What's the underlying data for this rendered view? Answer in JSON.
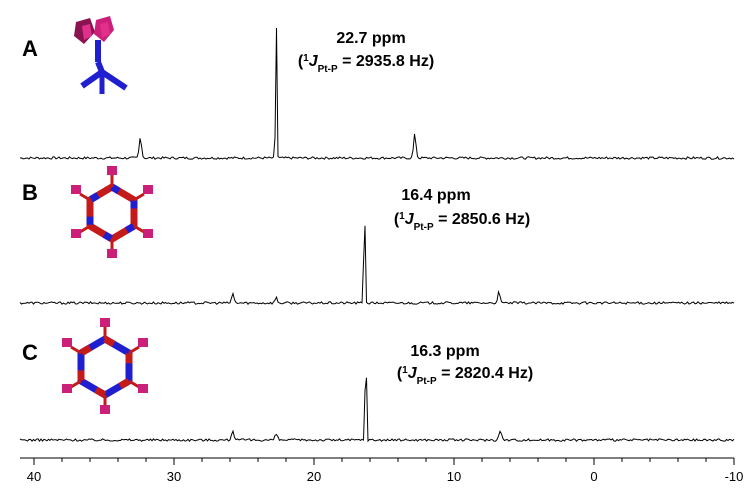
{
  "chart_data": {
    "type": "line",
    "title": "",
    "xlabel": "",
    "ylabel": "",
    "x_unit": "ppm",
    "xlim": [
      41,
      -10
    ],
    "x_ticks": [
      "40",
      "30",
      "20",
      "10",
      "0",
      "-10"
    ],
    "x_tick_values": [
      40,
      30,
      20,
      10,
      0,
      -10
    ],
    "reversed_x_axis": true,
    "grid": false,
    "panels": [
      {
        "label": "A",
        "structure_icon": "dimer-clip-icon",
        "shift_text": "22.7 ppm",
        "coupling_prefix": "(",
        "coupling_sup": "1",
        "coupling_j": "J",
        "coupling_sub": "Pt-P",
        "coupling_value": " = 2935.8 Hz)",
        "peaks": [
          {
            "ppm": 32.4,
            "relative_height": 0.14
          },
          {
            "ppm": 22.7,
            "relative_height": 1.0
          },
          {
            "ppm": 12.8,
            "relative_height": 0.16
          }
        ]
      },
      {
        "label": "B",
        "structure_icon": "hexagonal-macrocycle-icon",
        "shift_text": "16.4 ppm",
        "coupling_prefix": "(",
        "coupling_sup": "1",
        "coupling_j": "J",
        "coupling_sub": "Pt-P",
        "coupling_value": " = 2850.6 Hz)",
        "peaks": [
          {
            "ppm": 25.8,
            "relative_height": 0.07
          },
          {
            "ppm": 22.7,
            "relative_height": 0.04
          },
          {
            "ppm": 16.4,
            "relative_height": 1.0
          },
          {
            "ppm": 6.8,
            "relative_height": 0.08
          }
        ]
      },
      {
        "label": "C",
        "structure_icon": "hexagonal-macrocycle-icon",
        "shift_text": "16.3 ppm",
        "coupling_prefix": "(",
        "coupling_sup": "1",
        "coupling_j": "J",
        "coupling_sub": "Pt-P",
        "coupling_value": " = 2820.4 Hz)",
        "peaks": [
          {
            "ppm": 25.8,
            "relative_height": 0.08
          },
          {
            "ppm": 22.7,
            "relative_height": 0.05
          },
          {
            "ppm": 16.3,
            "relative_height": 1.0
          },
          {
            "ppm": 6.7,
            "relative_height": 0.08
          }
        ]
      }
    ]
  },
  "colors": {
    "spectrum": "#000000",
    "structure_blue": "#1f1fcf",
    "structure_red": "#c41a1a",
    "structure_magenta": "#cc1f7a"
  }
}
